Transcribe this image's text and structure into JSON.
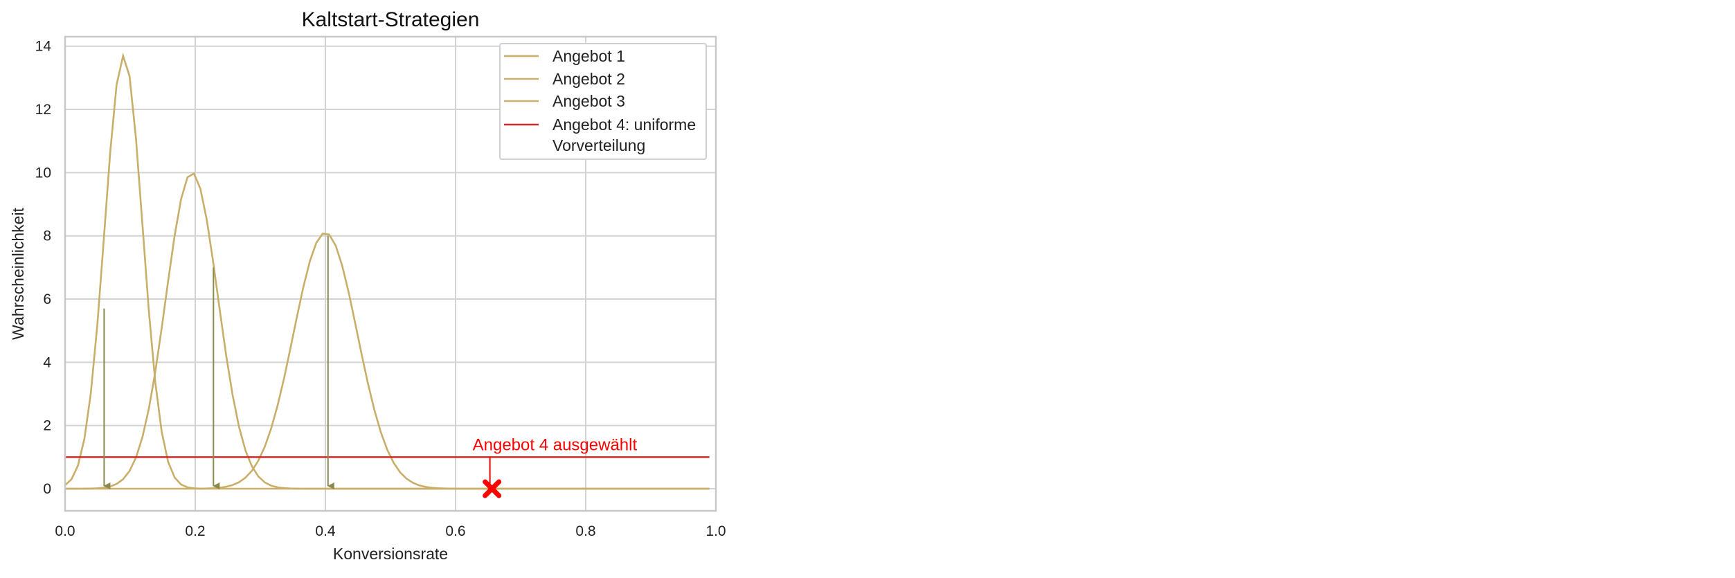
{
  "chart_data": {
    "type": "line",
    "title": "Kaltstart-Strategien",
    "xlabel": "Konversionsrate",
    "ylabel": "Wahrscheinlichkeit",
    "xlim": [
      0.0,
      1.0
    ],
    "ylim": [
      -0.7,
      14.3
    ],
    "x_ticks": [
      "0.0",
      "0.2",
      "0.4",
      "0.6",
      "0.8",
      "1.0"
    ],
    "y_ticks": [
      "0",
      "2",
      "4",
      "6",
      "8",
      "10",
      "12",
      "14"
    ],
    "grid": true,
    "legend_position": "top-right",
    "series": [
      {
        "name": "Angebot 1",
        "color": "#c8ae68",
        "shape": "bell",
        "peak_x": 0.09,
        "peak_y": 13.7,
        "spread": 0.029
      },
      {
        "name": "Angebot 2",
        "color": "#c8ae68",
        "shape": "bell",
        "peak_x": 0.195,
        "peak_y": 10.0,
        "spread": 0.04
      },
      {
        "name": "Angebot 3",
        "color": "#c8ae68",
        "shape": "bell",
        "peak_x": 0.4,
        "peak_y": 8.1,
        "spread": 0.049
      },
      {
        "name": "Angebot 4: uniforme\nVorverteilung",
        "color": "#d62728",
        "shape": "constant",
        "y": 1.0
      }
    ],
    "samples": [
      {
        "x": 0.06,
        "y_from": 5.7,
        "color": "#8a8a4e"
      },
      {
        "x": 0.228,
        "y_from": 7.0,
        "color": "#8a8a4e"
      },
      {
        "x": 0.404,
        "y_from": 8.0,
        "color": "#8a8a4e"
      }
    ],
    "selected": {
      "x": 0.656,
      "y": 0.0,
      "label": "Angebot 4 ausgewählt",
      "color": "#ff0000"
    }
  }
}
